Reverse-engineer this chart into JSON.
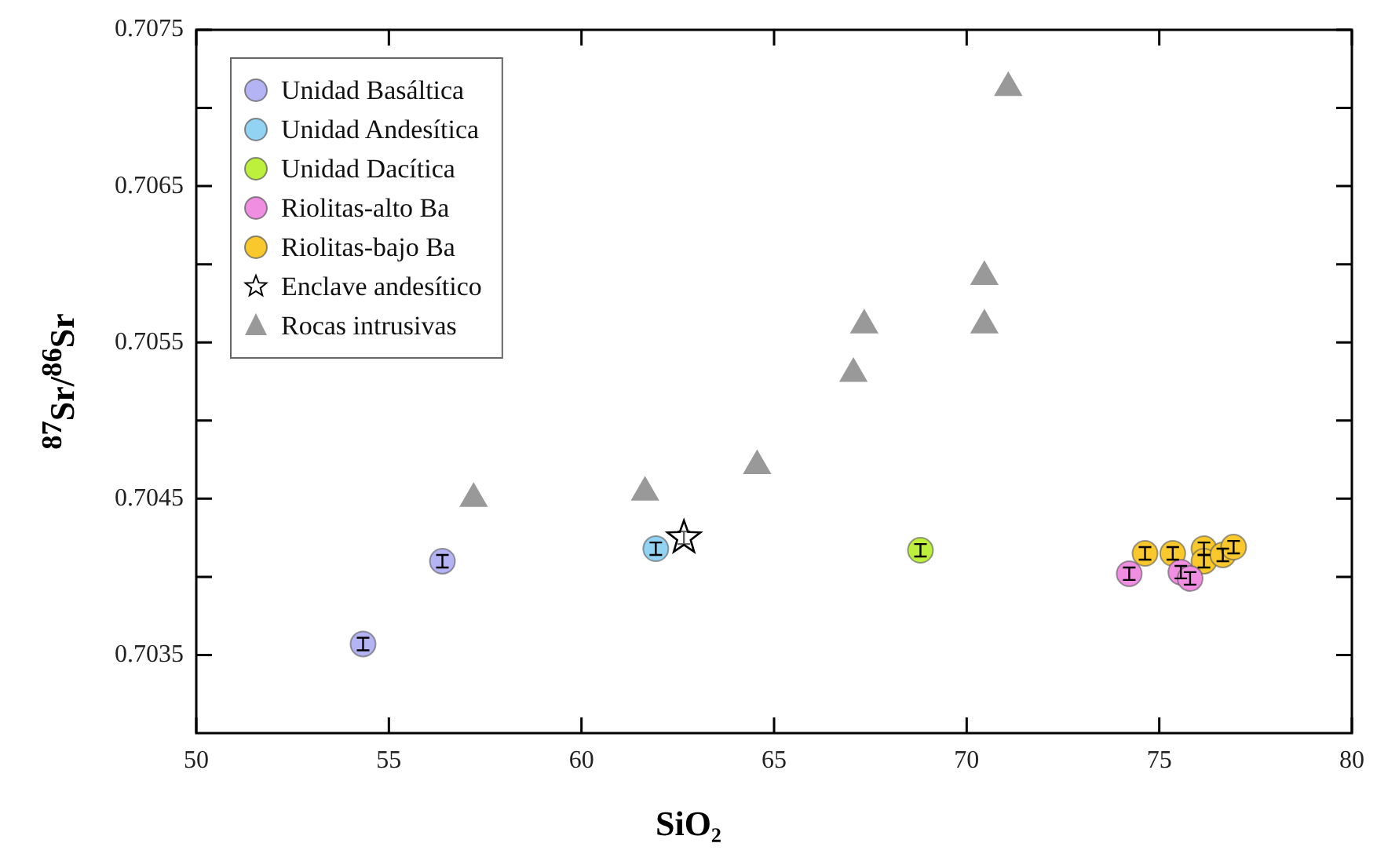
{
  "chart_data": {
    "type": "scatter",
    "xlabel": "SiO₂",
    "ylabel": "$^{87}$Sr/$^{86}$Sr",
    "xlim": [
      50,
      80
    ],
    "xticks": [
      50,
      55,
      60,
      65,
      70,
      75,
      80
    ],
    "ylim": [
      0.703,
      0.7075
    ],
    "yticks": [
      {
        "value": 0.7035,
        "label": "0.7035"
      },
      {
        "value": 0.704,
        "label": null
      },
      {
        "value": 0.7045,
        "label": "0.7045"
      },
      {
        "value": 0.705,
        "label": null
      },
      {
        "value": 0.7055,
        "label": "0.7055"
      },
      {
        "value": 0.706,
        "label": null
      },
      {
        "value": 0.7065,
        "label": "0.7065"
      },
      {
        "value": 0.707,
        "label": null
      },
      {
        "value": 0.7075,
        "label": "0.7075"
      }
    ],
    "grid": false,
    "legend": "top left",
    "series": [
      {
        "name": "Unidad Basáltica",
        "color": "#b4b4f4",
        "marker": "circle",
        "x": [
          54.33,
          56.39
        ],
        "values": [
          0.70357,
          0.7041
        ],
        "errors": [
          4e-05,
          4e-05
        ]
      },
      {
        "name": "Unidad Andesítica",
        "color": "#92d2f2",
        "marker": "circle",
        "x": [
          61.93
        ],
        "values": [
          0.70418
        ],
        "errors": [
          4e-05
        ]
      },
      {
        "name": "Unidad Dacítica",
        "color": "#bcf03c",
        "marker": "circle",
        "x": [
          68.8
        ],
        "values": [
          0.70417
        ],
        "errors": [
          4e-05
        ]
      },
      {
        "name": "Riolitas-alto Ba",
        "color": "#f08ee2",
        "marker": "circle",
        "x": [
          74.22,
          75.56,
          75.8
        ],
        "values": [
          0.70402,
          0.70403,
          0.70399
        ],
        "errors": [
          4e-05,
          4e-05,
          4e-05
        ]
      },
      {
        "name": "Riolitas-bajo Ba",
        "color": "#f8c82c",
        "marker": "circle",
        "x": [
          74.63,
          75.35,
          76.16,
          76.16,
          76.65,
          76.93
        ],
        "values": [
          0.70415,
          0.70415,
          0.70418,
          0.7041,
          0.70414,
          0.70419
        ],
        "errors": [
          4e-05,
          4e-05,
          4e-05,
          4e-05,
          4e-05,
          4e-05
        ]
      },
      {
        "name": "Enclave andesítico",
        "color": "#000000",
        "marker": "star",
        "x": [
          62.66
        ],
        "values": [
          0.70425
        ],
        "errors": [
          4e-05
        ]
      },
      {
        "name": "Rocas intrusivas",
        "color": "#999999",
        "marker": "triangle",
        "x": [
          57.2,
          61.65,
          64.56,
          67.06,
          67.34,
          70.46,
          70.46,
          71.08
        ],
        "values": [
          0.7045,
          0.70454,
          0.70471,
          0.7053,
          0.70561,
          0.70561,
          0.70592,
          0.70713
        ]
      }
    ]
  }
}
